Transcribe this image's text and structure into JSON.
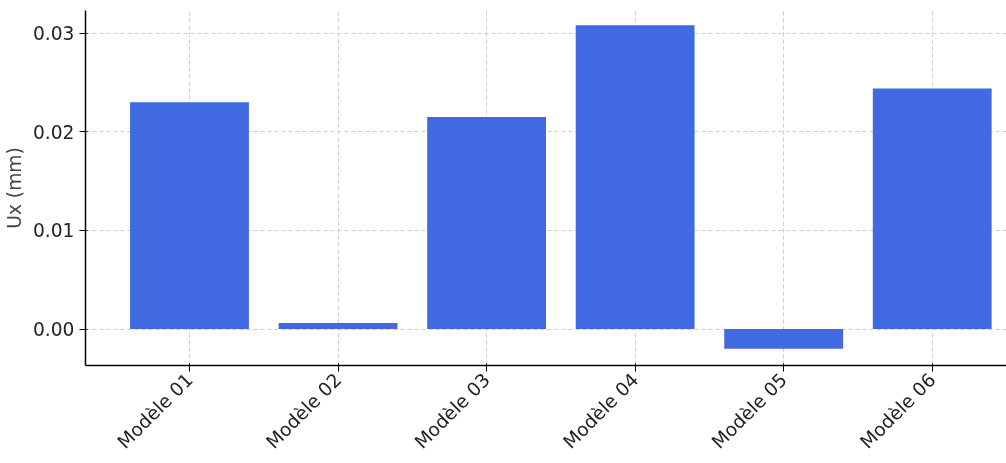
{
  "chart_data": {
    "type": "bar",
    "ylabel": "Ux (mm)",
    "categories": [
      "Modèle 01",
      "Modèle 02",
      "Modèle 03",
      "Modèle 04",
      "Modèle 05",
      "Modèle 06"
    ],
    "values": [
      0.023,
      0.0006,
      0.0215,
      0.0308,
      -0.002,
      0.0244
    ],
    "color": "#4169e1",
    "ylim": [
      -0.0037,
      0.0323
    ],
    "yticks": [
      {
        "value": 0,
        "label": "0.00"
      },
      {
        "value": 0.01,
        "label": "0.01"
      },
      {
        "value": 0.02,
        "label": "0.02"
      },
      {
        "value": 0.03,
        "label": "0.03"
      }
    ],
    "grid": true
  }
}
